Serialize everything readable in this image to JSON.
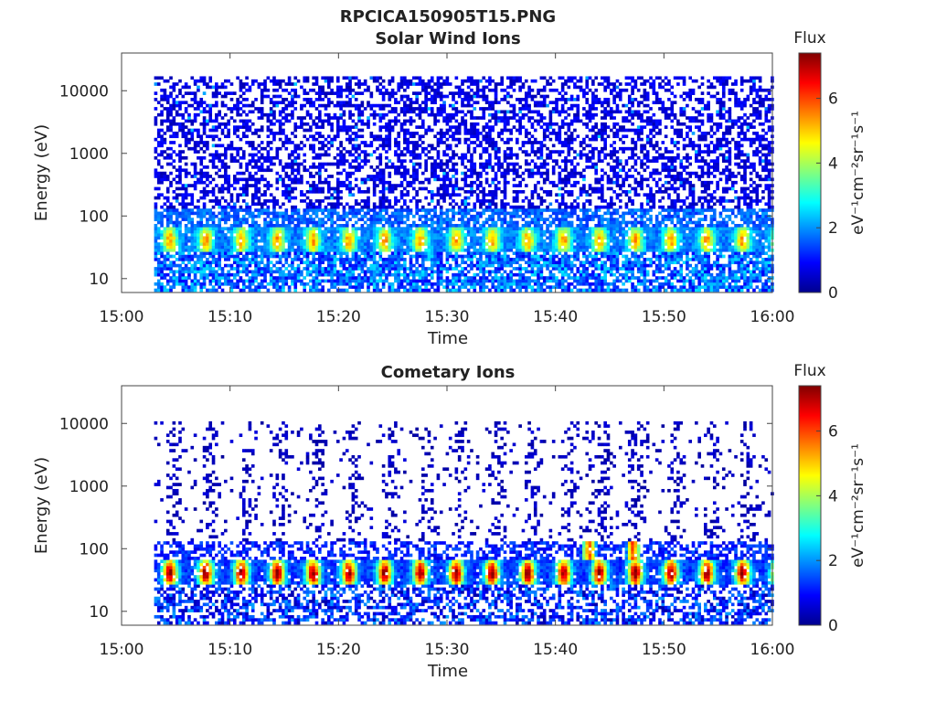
{
  "figure": {
    "title": "RPCICA150905T15.PNG"
  },
  "chart_data": [
    {
      "type": "heatmap",
      "title": "Solar Wind Ions",
      "xlabel": "Time",
      "ylabel": "Energy (eV)",
      "x_ticks": [
        "15:00",
        "15:10",
        "15:20",
        "15:30",
        "15:40",
        "15:50",
        "16:00"
      ],
      "xlim": [
        "15:00",
        "16:00"
      ],
      "y_scale": "log",
      "ylim": [
        6,
        40000
      ],
      "y_ticks": [
        10,
        100,
        1000,
        10000
      ],
      "y_tick_labels": [
        "10",
        "100",
        "1000",
        "10000"
      ],
      "data_start": "15:03",
      "data_end": "16:00",
      "colorbar": {
        "title": "Flux",
        "label": "eV⁻¹cm⁻²sr⁻¹s⁻¹",
        "range": [
          0,
          7.4
        ],
        "ticks": [
          0,
          2,
          4,
          6
        ],
        "colormap": "jet"
      },
      "features": {
        "bright_band_energy_eV": [
          25,
          60
        ],
        "bright_band_peak_flux": 4.8,
        "background_flux": 0.8,
        "pulse_period_min": 3.3
      }
    },
    {
      "type": "heatmap",
      "title": "Cometary Ions",
      "xlabel": "Time",
      "ylabel": "Energy (eV)",
      "x_ticks": [
        "15:00",
        "15:10",
        "15:20",
        "15:30",
        "15:40",
        "15:50",
        "16:00"
      ],
      "xlim": [
        "15:00",
        "16:00"
      ],
      "y_scale": "log",
      "ylim": [
        6,
        40000
      ],
      "y_ticks": [
        10,
        100,
        1000,
        10000
      ],
      "y_tick_labels": [
        "10",
        "100",
        "1000",
        "10000"
      ],
      "data_start": "15:03",
      "data_end": "16:00",
      "colorbar": {
        "title": "Flux",
        "label": "eV⁻¹cm⁻²sr⁻¹s⁻¹",
        "range": [
          0,
          7.4
        ],
        "ticks": [
          0,
          2,
          4,
          6
        ],
        "colormap": "jet"
      },
      "features": {
        "bright_band_energy_eV": [
          25,
          60
        ],
        "bright_band_peak_flux": 7.2,
        "background_flux": 0.3,
        "pulse_period_min": 3.3,
        "burst_times": [
          "15:43",
          "15:47"
        ]
      }
    }
  ]
}
